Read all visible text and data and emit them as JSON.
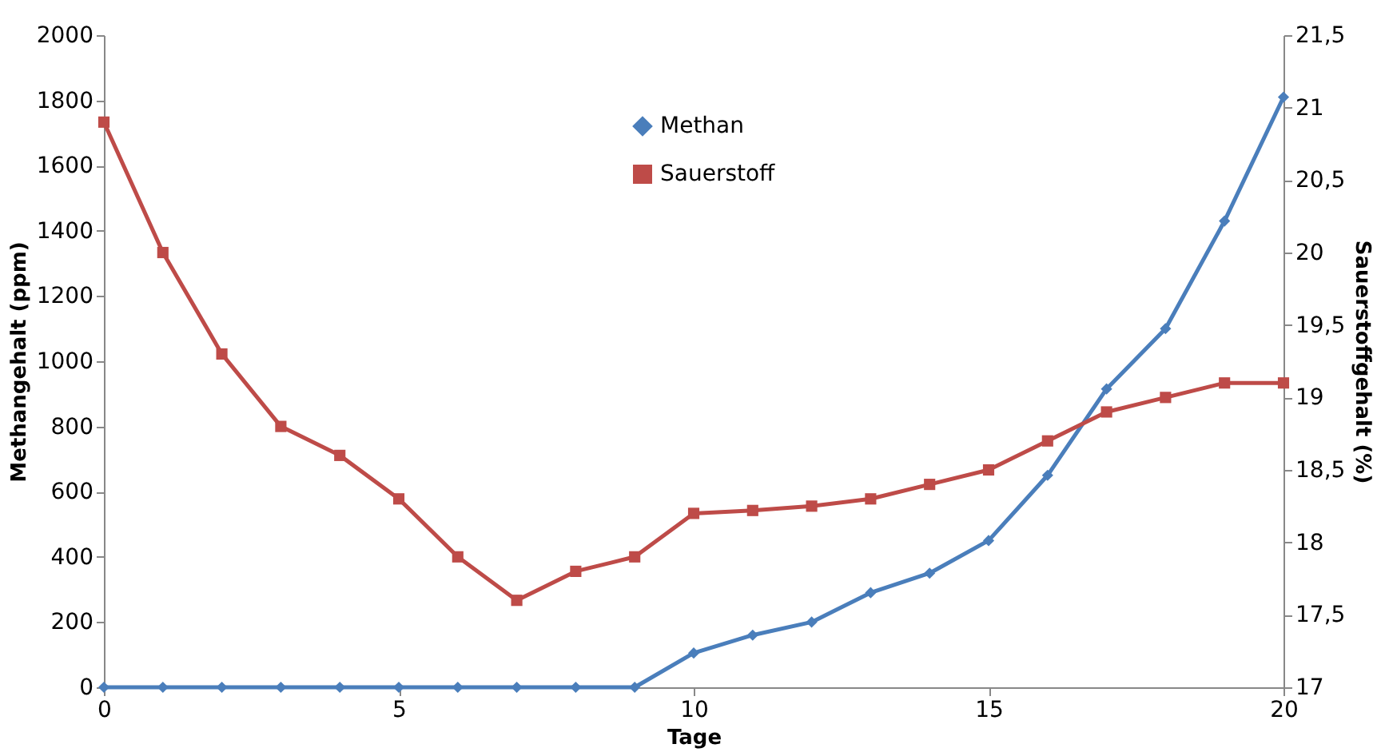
{
  "chart_data": {
    "type": "line",
    "xlabel": "Tage",
    "ylabel": "Methangehalt (ppm)",
    "y2label": "Sauerstoffgehalt (%)",
    "x": [
      0,
      1,
      2,
      3,
      4,
      5,
      6,
      7,
      8,
      9,
      10,
      11,
      12,
      13,
      14,
      15,
      16,
      17,
      18,
      19,
      20
    ],
    "series": [
      {
        "name": "Methan",
        "color": "#4a7ebb",
        "marker": "diamond",
        "values": [
          0,
          0,
          0,
          0,
          0,
          0,
          0,
          0,
          0,
          0,
          105,
          160,
          200,
          290,
          350,
          450,
          650,
          915,
          1100,
          1430,
          1810
        ]
      },
      {
        "name": "Sauerstoff",
        "color": "#be4b48",
        "marker": "square",
        "axis": "y2",
        "values": [
          20.9,
          20.0,
          19.3,
          18.8,
          18.6,
          18.3,
          17.9,
          17.6,
          17.8,
          17.9,
          18.2,
          18.22,
          18.25,
          18.3,
          18.4,
          18.5,
          18.7,
          18.9,
          19.0,
          19.1,
          19.1
        ]
      }
    ],
    "xlim": [
      0,
      20
    ],
    "xticks": [
      0,
      5,
      10,
      15,
      20
    ],
    "ylim": [
      0,
      2000
    ],
    "yticks": [
      0,
      200,
      400,
      600,
      800,
      1000,
      1200,
      1400,
      1600,
      1800,
      2000
    ],
    "y2lim": [
      17,
      21.5
    ],
    "y2ticks": [
      17,
      {
        "value": 17.5,
        "label": "17,5"
      },
      18,
      {
        "value": 18.5,
        "label": "18,5"
      },
      19,
      {
        "value": 19.5,
        "label": "19,5"
      },
      20,
      {
        "value": 20.5,
        "label": "20,5"
      },
      21,
      {
        "value": 21.5,
        "label": "21,5"
      }
    ],
    "grid": false,
    "legend": "top",
    "line_style": "solid"
  }
}
